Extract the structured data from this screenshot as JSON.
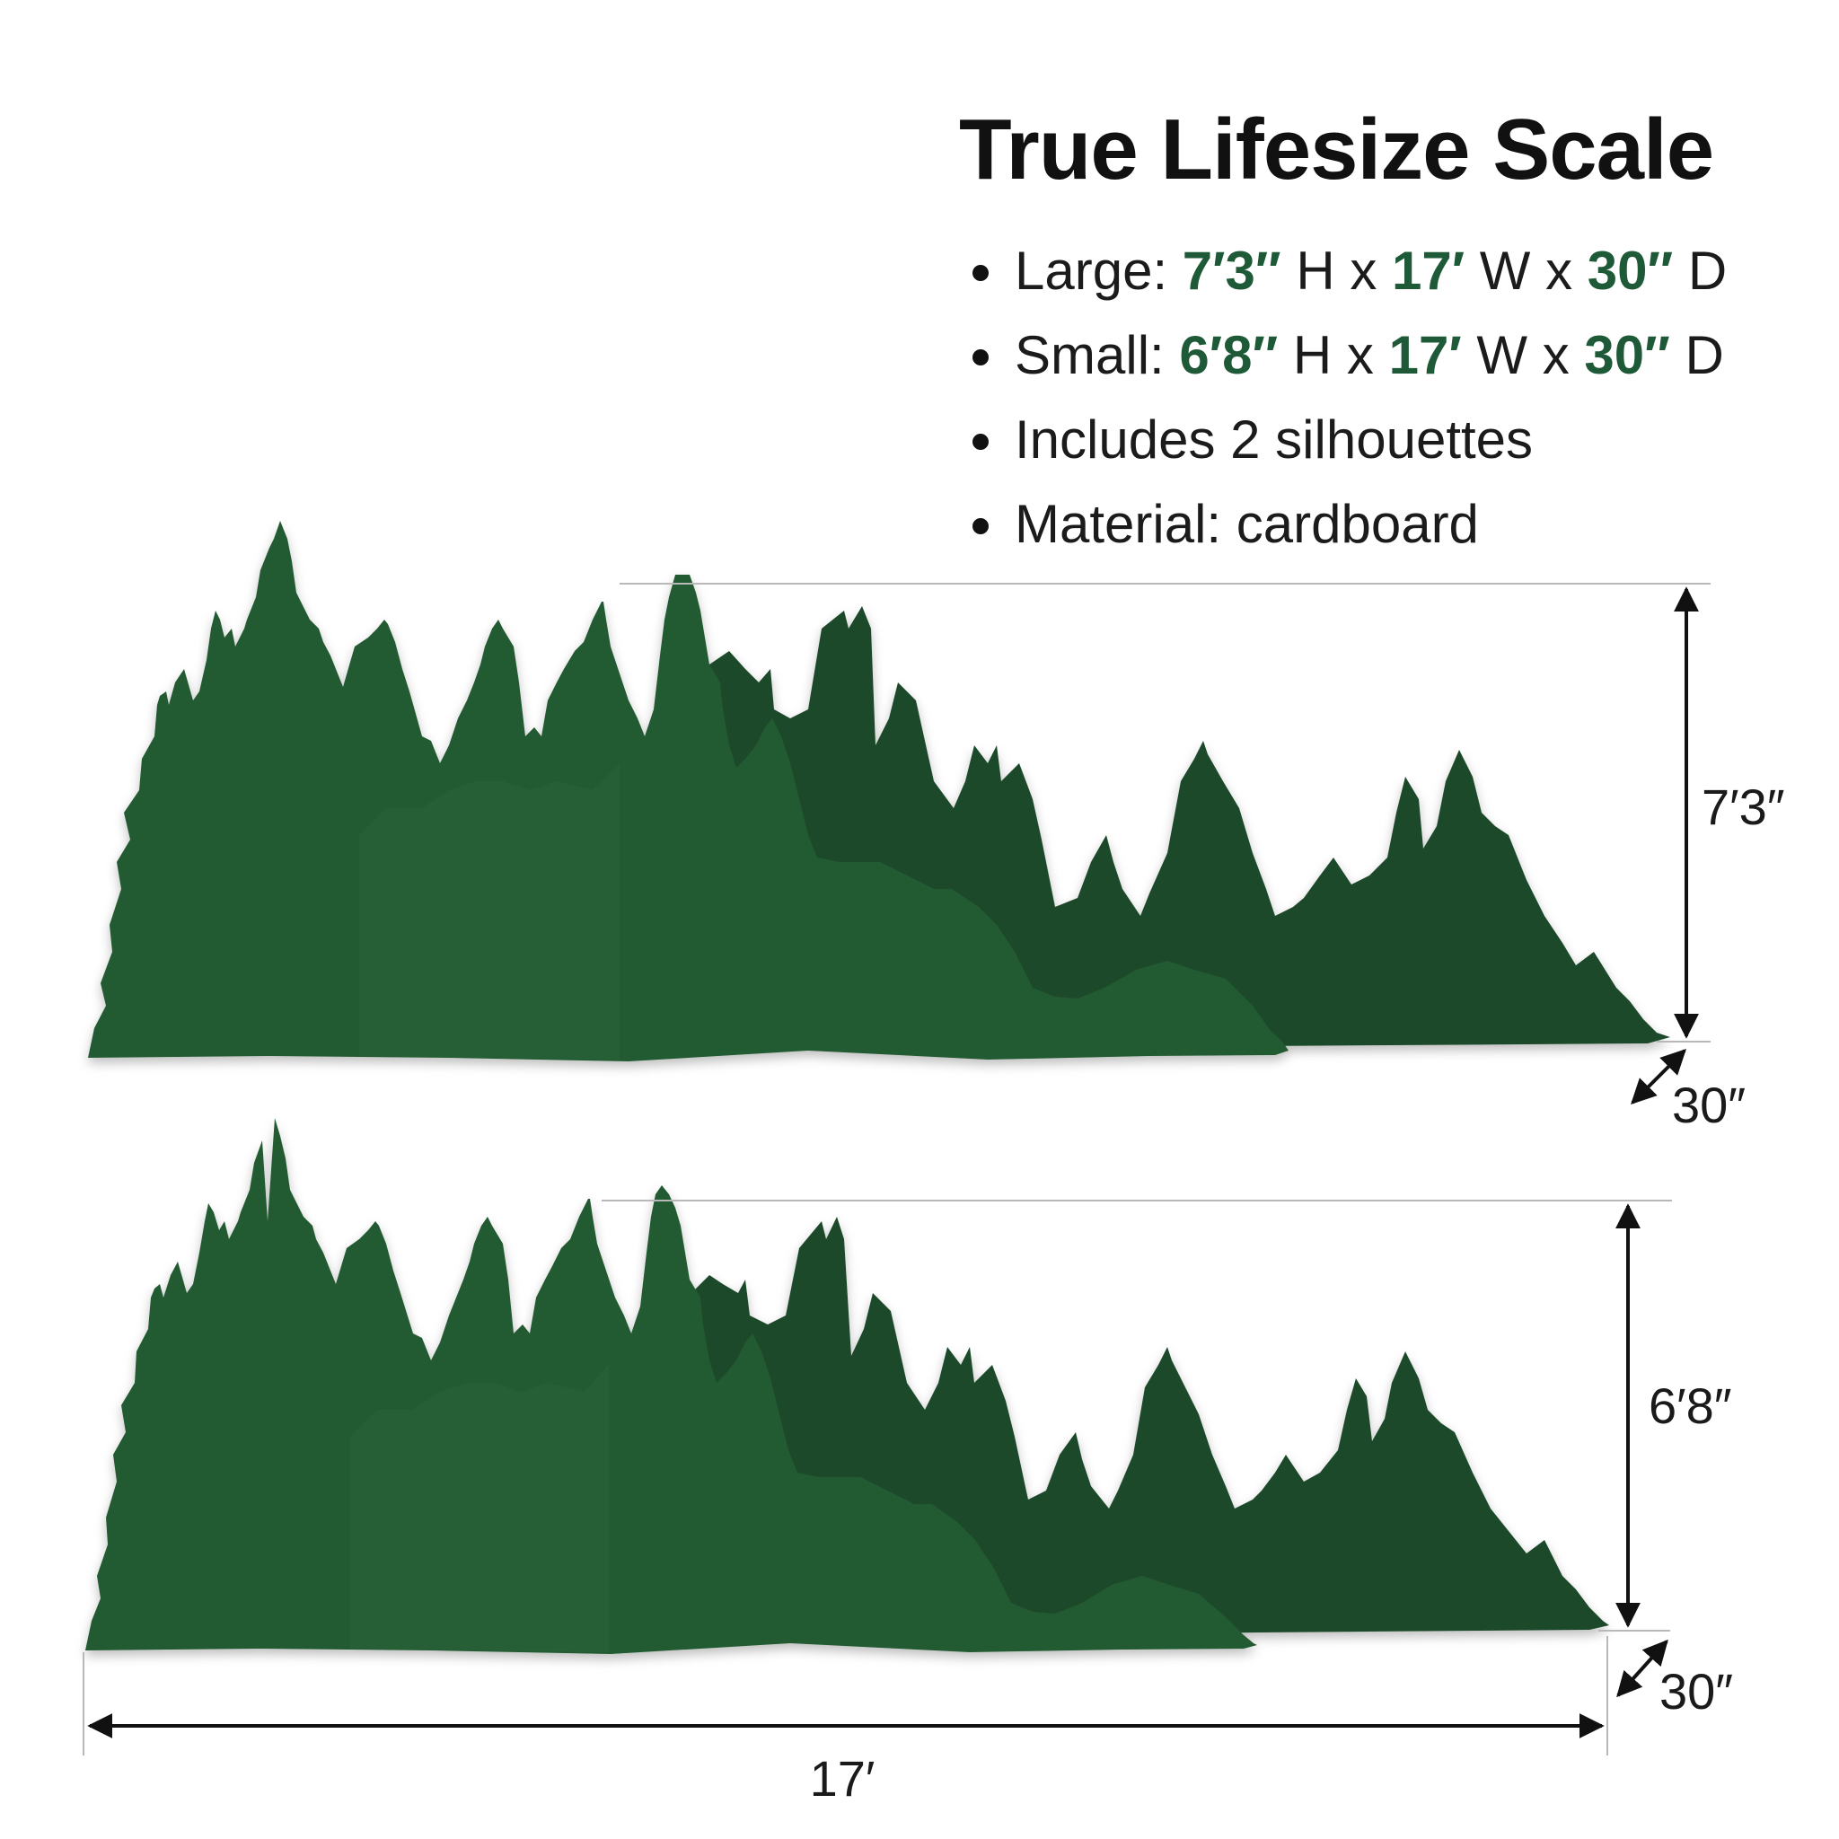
{
  "title": "True Lifesize Scale",
  "specs": {
    "large": {
      "label": "Large: ",
      "height": "7′3″",
      "h_suffix": " H x ",
      "width": "17′",
      "w_suffix": " W x ",
      "depth": "30″",
      "d_suffix": " D"
    },
    "small": {
      "label": "Small: ",
      "height": "6′8″",
      "h_suffix": " H x ",
      "width": "17′",
      "w_suffix": " W x ",
      "depth": "30″",
      "d_suffix": " D"
    },
    "silhouettes": "Includes 2 silhouettes",
    "material": "Material: cardboard"
  },
  "large_panel": {
    "height_label": "7′3″",
    "depth_label": "30″"
  },
  "small_panel": {
    "height_label": "6′8″",
    "depth_label": "30″"
  },
  "width_label": "17′",
  "colors": {
    "forest_dark": "#1f4a2c",
    "forest_mid": "#245a33",
    "forest_light": "#2a6338",
    "accent_text": "#1f5a38",
    "dimension_lines": "#111111"
  }
}
